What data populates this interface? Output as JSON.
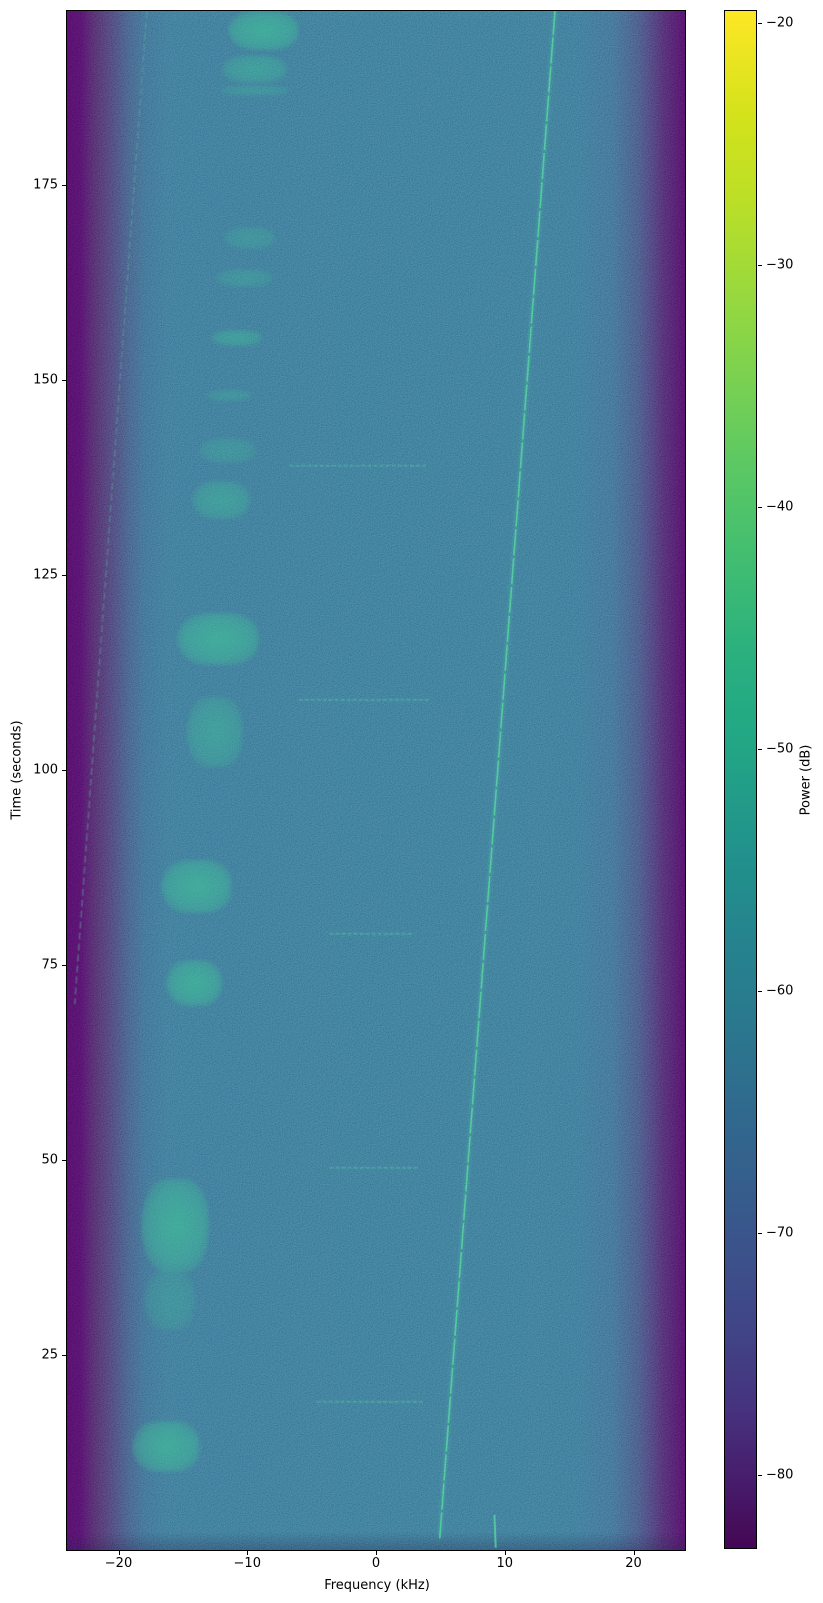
{
  "figure": {
    "kind": "spectrogram",
    "background": "#ffffff",
    "colormap": "viridis"
  },
  "axes": {
    "xlabel": "Frequency (kHz)",
    "ylabel": "Time (seconds)",
    "colorbar_label": "Power (dB)"
  },
  "chart_data": {
    "type": "heatmap",
    "title": "",
    "xlabel": "Frequency (kHz)",
    "ylabel": "Time (seconds)",
    "colorbar_label": "Power (dB)",
    "xlim": [
      -24,
      24
    ],
    "ylim": [
      0,
      197.3
    ],
    "clim": [
      -83,
      -19.5
    ],
    "x_ticks": [
      -20,
      -10,
      0,
      10,
      20
    ],
    "y_ticks": [
      25,
      50,
      75,
      100,
      125,
      150,
      175
    ],
    "colorbar_ticks": [
      -20,
      -30,
      -40,
      -50,
      -60,
      -70,
      -80
    ],
    "grid": false,
    "legend": false,
    "noise_floor_db": -60,
    "edge_rolloff": {
      "description": "dark band-edge roll-off to ~-83 dB outside ±21 kHz",
      "left_edge_khz": -21,
      "right_edge_khz": 21
    },
    "features": {
      "rising_tone": {
        "comment": "bright narrowband carrier drifting up in frequency over time",
        "f_khz": [
          4.95,
          13.9
        ],
        "t_s": [
          1.5,
          197.3
        ],
        "color": "#3cc48f"
      },
      "rising_tone_alias_segment": {
        "comment": "short bright segment near bottom edge",
        "f_khz": [
          9.3,
          9.2
        ],
        "t_s": [
          0.3,
          4.5
        ],
        "color": "#3cc48f"
      },
      "left_faint_tone": {
        "comment": "faint carrier drifting toward lower band edge",
        "f_khz": [
          -17.8,
          -23.4
        ],
        "t_s": [
          197.3,
          70
        ],
        "color": "#3fae92"
      },
      "horizontal_bursts": {
        "comment": "faint wideband ticks every 30 s near 0 kHz",
        "times_s": [
          19,
          49,
          79,
          109,
          139
        ],
        "f_ranges_khz": [
          [
            -4.6,
            3.6
          ],
          [
            -3.6,
            3.3
          ],
          [
            -3.6,
            2.9
          ],
          [
            -6.0,
            4.1
          ],
          [
            -6.7,
            3.9
          ]
        ],
        "color": "#3dbd8d"
      },
      "speech_bursts": {
        "comment": "striated transmission blobs, lower sideband region",
        "color": "#38bd92",
        "items": [
          {
            "f_khz": -8.7,
            "t_s": 194.8,
            "bw_khz": 5.4,
            "dur_s": 5.1,
            "level": "bright"
          },
          {
            "f_khz": -9.4,
            "t_s": 189.9,
            "bw_khz": 5.0,
            "dur_s": 3.6,
            "level": "medium"
          },
          {
            "f_khz": -9.4,
            "t_s": 187.1,
            "bw_khz": 5.4,
            "dur_s": 1.5,
            "level": "faint"
          },
          {
            "f_khz": -9.8,
            "t_s": 168.2,
            "bw_khz": 3.9,
            "dur_s": 2.8,
            "level": "faint"
          },
          {
            "f_khz": -10.2,
            "t_s": 163.1,
            "bw_khz": 4.3,
            "dur_s": 2.3,
            "level": "faint"
          },
          {
            "f_khz": -10.8,
            "t_s": 155.4,
            "bw_khz": 3.9,
            "dur_s": 2.0,
            "level": "medium"
          },
          {
            "f_khz": -11.4,
            "t_s": 148.0,
            "bw_khz": 3.5,
            "dur_s": 1.5,
            "level": "faint"
          },
          {
            "f_khz": -11.5,
            "t_s": 141.0,
            "bw_khz": 4.3,
            "dur_s": 3.2,
            "level": "faint"
          },
          {
            "f_khz": -12.0,
            "t_s": 134.6,
            "bw_khz": 4.5,
            "dur_s": 4.9,
            "level": "medium"
          },
          {
            "f_khz": -12.2,
            "t_s": 116.8,
            "bw_khz": 6.3,
            "dur_s": 6.7,
            "level": "bright"
          },
          {
            "f_khz": -12.5,
            "t_s": 104.9,
            "bw_khz": 4.3,
            "dur_s": 9.0,
            "level": "medium"
          },
          {
            "f_khz": -13.9,
            "t_s": 85.1,
            "bw_khz": 5.4,
            "dur_s": 6.8,
            "level": "bright"
          },
          {
            "f_khz": -14.1,
            "t_s": 72.7,
            "bw_khz": 4.3,
            "dur_s": 6.0,
            "level": "bright"
          },
          {
            "f_khz": -15.6,
            "t_s": 41.6,
            "bw_khz": 5.2,
            "dur_s": 11.9,
            "level": "bright"
          },
          {
            "f_khz": -16.0,
            "t_s": 32.1,
            "bw_khz": 3.9,
            "dur_s": 7.7,
            "level": "faint"
          },
          {
            "f_khz": -16.3,
            "t_s": 13.3,
            "bw_khz": 5.2,
            "dur_s": 6.5,
            "level": "bright"
          }
        ]
      }
    }
  },
  "colors": {
    "viridis_top": "#fde725",
    "viridis_mid": "#21918c",
    "viridis_background": "#2c6f8e",
    "viridis_bottom": "#440154",
    "tone": "#3cc48f",
    "burst": "#38bd92"
  }
}
